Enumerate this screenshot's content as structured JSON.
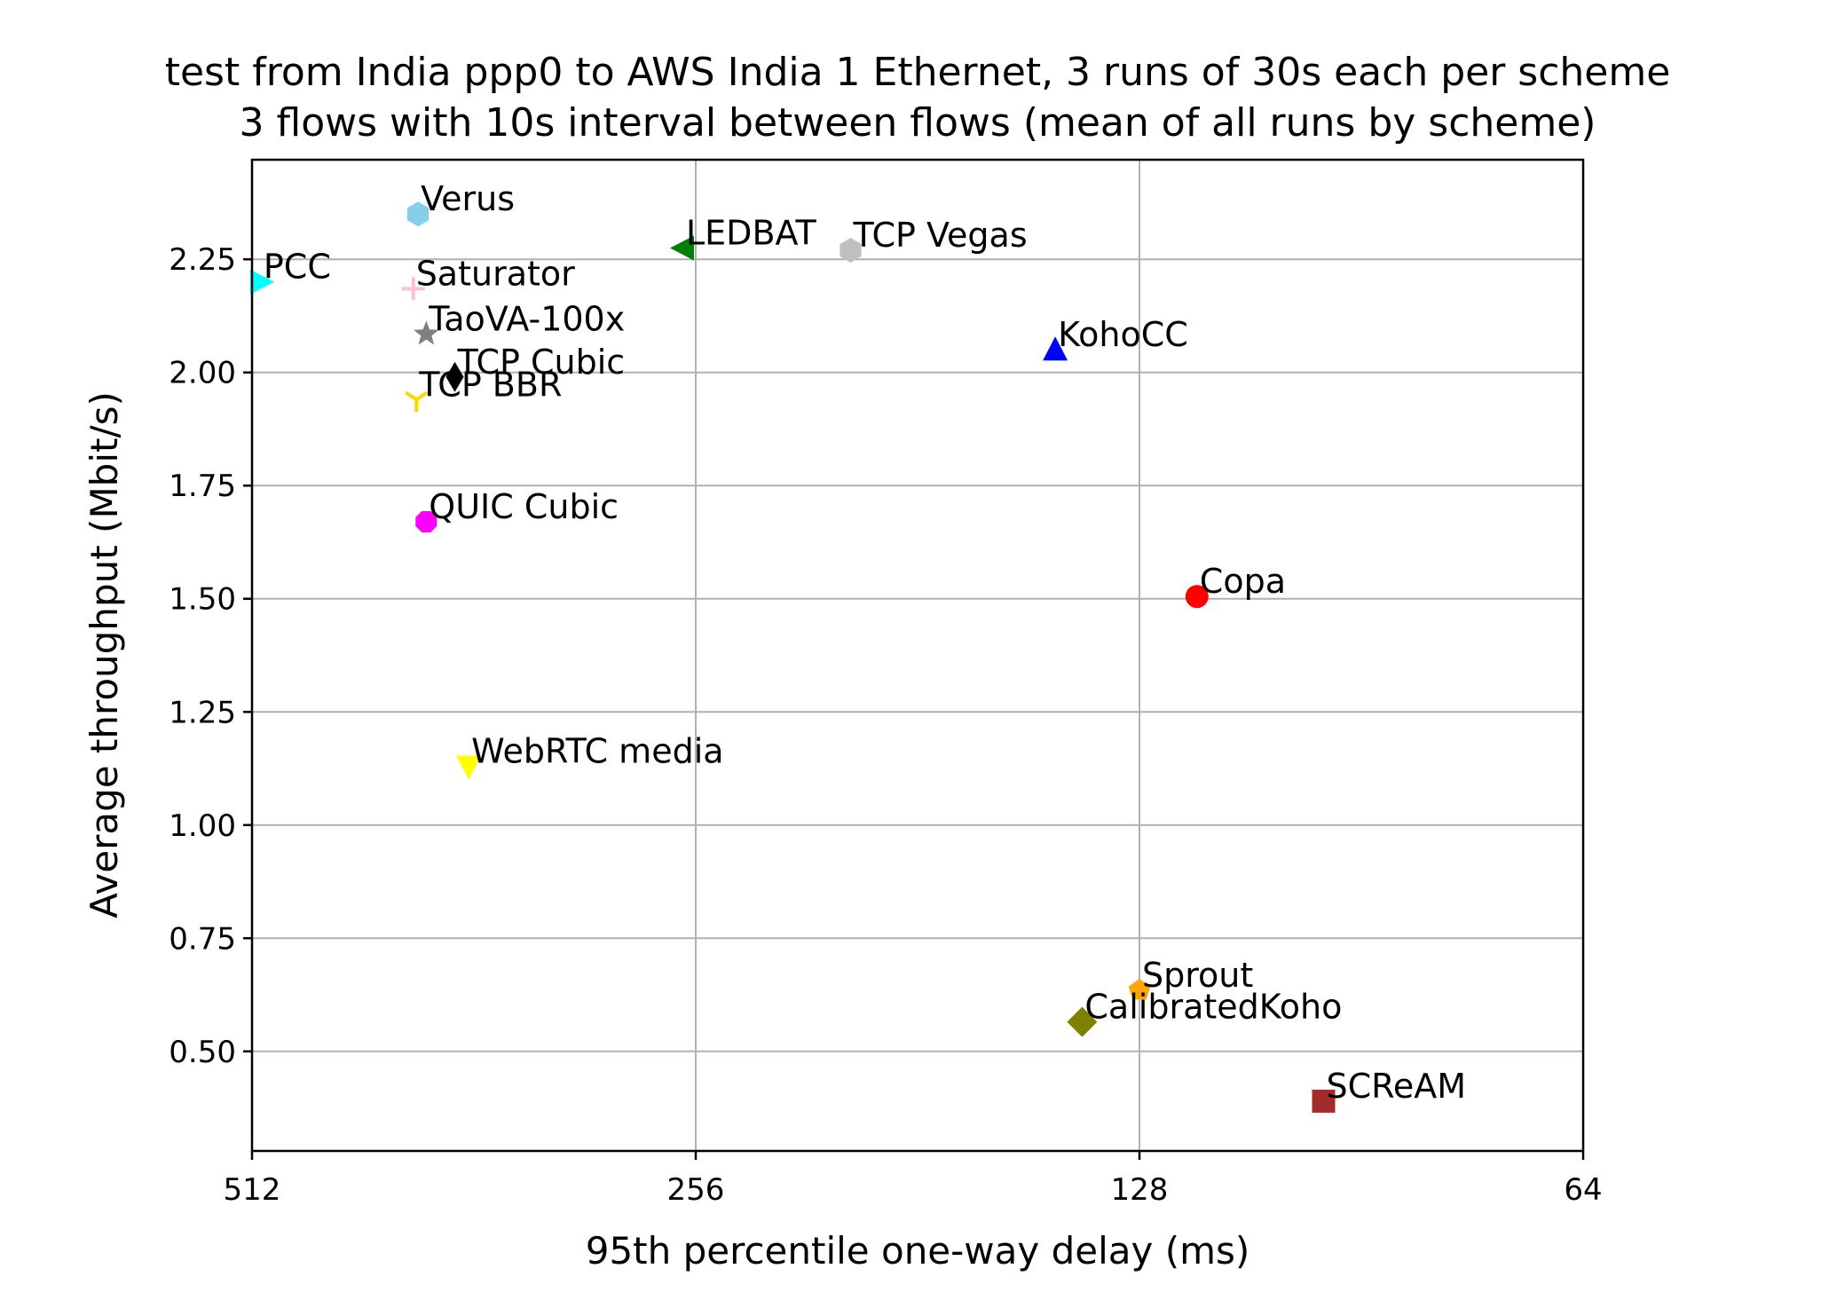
{
  "chart_data": {
    "type": "scatter",
    "title": [
      "test from India ppp0 to AWS India 1 Ethernet, 3 runs of 30s each per scheme",
      "3 flows with 10s interval between flows (mean of all runs by scheme)"
    ],
    "xlabel": "95th percentile one-way delay (ms)",
    "ylabel": "Average throughput (Mbit/s)",
    "x_scale": "log2",
    "x_inverted": true,
    "xlim": [
      512,
      64
    ],
    "ylim": [
      0.28,
      2.47
    ],
    "x_ticks": [
      512,
      256,
      128,
      64
    ],
    "x_tick_labels": [
      "512",
      "256",
      "128",
      "64"
    ],
    "y_ticks": [
      0.5,
      0.75,
      1.0,
      1.25,
      1.5,
      1.75,
      2.0,
      2.25
    ],
    "y_tick_labels": [
      "0.50",
      "0.75",
      "1.00",
      "1.25",
      "1.50",
      "1.75",
      "2.00",
      "2.25"
    ],
    "grid": true,
    "legend": "none",
    "series": [
      {
        "name": "Verus",
        "x": 395,
        "y": 2.35,
        "color": "#87ceeb",
        "marker": "hexagon"
      },
      {
        "name": "LEDBAT",
        "x": 261,
        "y": 2.275,
        "color": "#008000",
        "marker": "triangle-left"
      },
      {
        "name": "TCP Vegas",
        "x": 201,
        "y": 2.27,
        "color": "#c0c0c0",
        "marker": "hexagon"
      },
      {
        "name": "PCC",
        "x": 505,
        "y": 2.2,
        "color": "#00ffff",
        "marker": "triangle-right"
      },
      {
        "name": "Saturator",
        "x": 398,
        "y": 2.185,
        "color": "#ffc0cb",
        "marker": "plus"
      },
      {
        "name": "TaoVA-100x",
        "x": 390,
        "y": 2.085,
        "color": "#808080",
        "marker": "star"
      },
      {
        "name": "KohoCC",
        "x": 146,
        "y": 2.05,
        "color": "#0000ff",
        "marker": "triangle-up"
      },
      {
        "name": "TCP Cubic",
        "x": 373,
        "y": 1.99,
        "color": "#000000",
        "marker": "thin-diamond"
      },
      {
        "name": "TCP BBR",
        "x": 396,
        "y": 1.94,
        "color": "#ffd700",
        "marker": "tri-down"
      },
      {
        "name": "QUIC Cubic",
        "x": 390,
        "y": 1.67,
        "color": "#ff00ff",
        "marker": "octagon"
      },
      {
        "name": "Copa",
        "x": 117,
        "y": 1.505,
        "color": "#ff0000",
        "marker": "circle"
      },
      {
        "name": "WebRTC media",
        "x": 365,
        "y": 1.13,
        "color": "#ffff00",
        "marker": "triangle-down"
      },
      {
        "name": "Sprout",
        "x": 128,
        "y": 0.635,
        "color": "#ffa500",
        "marker": "pentagon"
      },
      {
        "name": "CalibratedKoho",
        "x": 140,
        "y": 0.565,
        "color": "#808000",
        "marker": "diamond"
      },
      {
        "name": "SCReAM",
        "x": 96,
        "y": 0.39,
        "color": "#a52a2a",
        "marker": "square"
      }
    ]
  }
}
